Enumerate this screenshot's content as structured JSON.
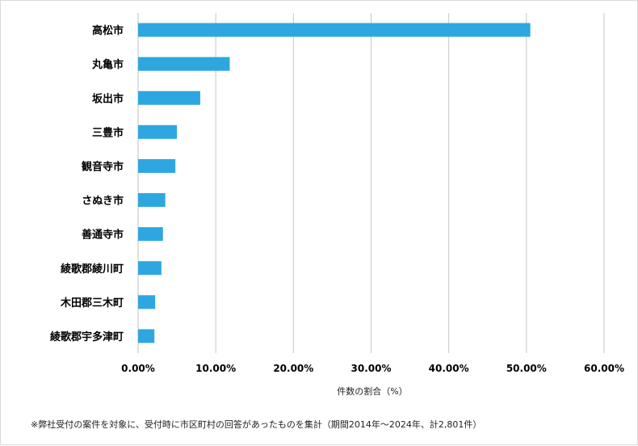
{
  "chart_data": {
    "type": "bar",
    "orientation": "horizontal",
    "categories": [
      "高松市",
      "丸亀市",
      "坂出市",
      "三豊市",
      "観音寺市",
      "さぬき市",
      "善通寺市",
      "綾歌郡綾川町",
      "木田郡三木町",
      "綾歌郡宇多津町"
    ],
    "values": [
      50.5,
      11.8,
      8.0,
      5.0,
      4.8,
      3.5,
      3.2,
      3.0,
      2.2,
      2.1
    ],
    "xlim": [
      0,
      60
    ],
    "xticks": [
      "0.00%",
      "10.00%",
      "20.00%",
      "30.00%",
      "40.00%",
      "50.00%",
      "60.00%"
    ],
    "xlabel": "件数の割合（%）",
    "grid": "vertical",
    "bar_color": "#2ea7e0",
    "note": "※弊社受付の案件を対象に、受付時に市区町村の回答があったものを集計（期間2014年～2024年、計2,801件）"
  }
}
